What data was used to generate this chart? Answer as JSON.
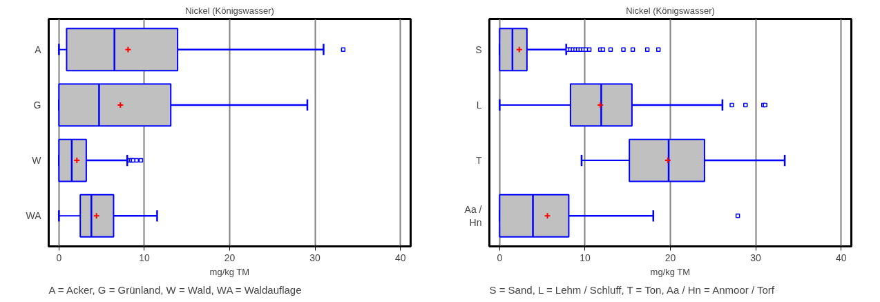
{
  "chart_data": [
    {
      "type": "box",
      "title": "Nickel (Königswasser)",
      "xlabel": "mg/kg TM",
      "orientation": "horizontal",
      "categories": [
        "A",
        "G",
        "W",
        "WA"
      ],
      "xlim": [
        -1.2,
        41.2
      ],
      "xticks": [
        0,
        10,
        20,
        30,
        40
      ],
      "grid": "x",
      "marker": "square",
      "series": [
        {
          "color": "#0000ff",
          "boxes": [
            {
              "low": 0,
              "q1": 0.9,
              "median": 6.5,
              "q3": 13.9,
              "high": 31.0,
              "mean": 8.1,
              "outliers": [
                33.3
              ]
            },
            {
              "low": 0,
              "q1": 0,
              "median": 4.7,
              "q3": 13.1,
              "high": 29.1,
              "mean": 7.2
            },
            {
              "low": 0,
              "q1": 0,
              "median": 1.5,
              "q3": 3.2,
              "high": 8.0,
              "mean": 2.1,
              "outliers": [
                8.3,
                8.5,
                8.7,
                9.1,
                9.6
              ]
            },
            {
              "low": 0,
              "q1": 2.5,
              "median": 3.8,
              "q3": 6.4,
              "high": 11.5,
              "mean": 4.4
            }
          ]
        }
      ],
      "annotations": [
        "A = Acker, G = Grünland, W = Wald, WA = Waldauflage"
      ]
    },
    {
      "type": "box",
      "title": "Nickel (Königswasser)",
      "xlabel": "mg/kg TM",
      "orientation": "horizontal",
      "categories": [
        "S",
        "L",
        "T",
        "Aa /\nHn"
      ],
      "xlim": [
        -1.2,
        41.2
      ],
      "xticks": [
        0,
        10,
        20,
        30,
        40
      ],
      "grid": "x",
      "marker": "square",
      "series": [
        {
          "color": "#0000ff",
          "boxes": [
            {
              "low": 0,
              "q1": 0,
              "median": 1.5,
              "q3": 3.2,
              "high": 7.8,
              "mean": 2.3,
              "outliers": [
                8.0,
                8.3,
                8.6,
                8.9,
                9.2,
                9.5,
                9.8,
                10.1,
                10.5,
                11.8,
                12.1,
                13.0,
                14.5,
                15.6,
                17.3,
                18.6
              ]
            },
            {
              "low": 0,
              "q1": 8.3,
              "median": 11.9,
              "q3": 15.5,
              "high": 26.1,
              "mean": 11.8,
              "outliers": [
                27.2,
                28.8,
                30.9,
                31.1
              ]
            },
            {
              "low": 9.6,
              "q1": 15.2,
              "median": 19.8,
              "q3": 24.0,
              "high": 33.4,
              "mean": 19.7
            },
            {
              "low": 0,
              "q1": 0,
              "median": 3.9,
              "q3": 8.1,
              "high": 18.0,
              "mean": 5.6,
              "outliers": [
                27.9
              ]
            }
          ]
        }
      ],
      "annotations": [
        "S = Sand, L = Lehm / Schluff, T = Ton, Aa / Hn = Anmoor / Torf"
      ]
    }
  ]
}
